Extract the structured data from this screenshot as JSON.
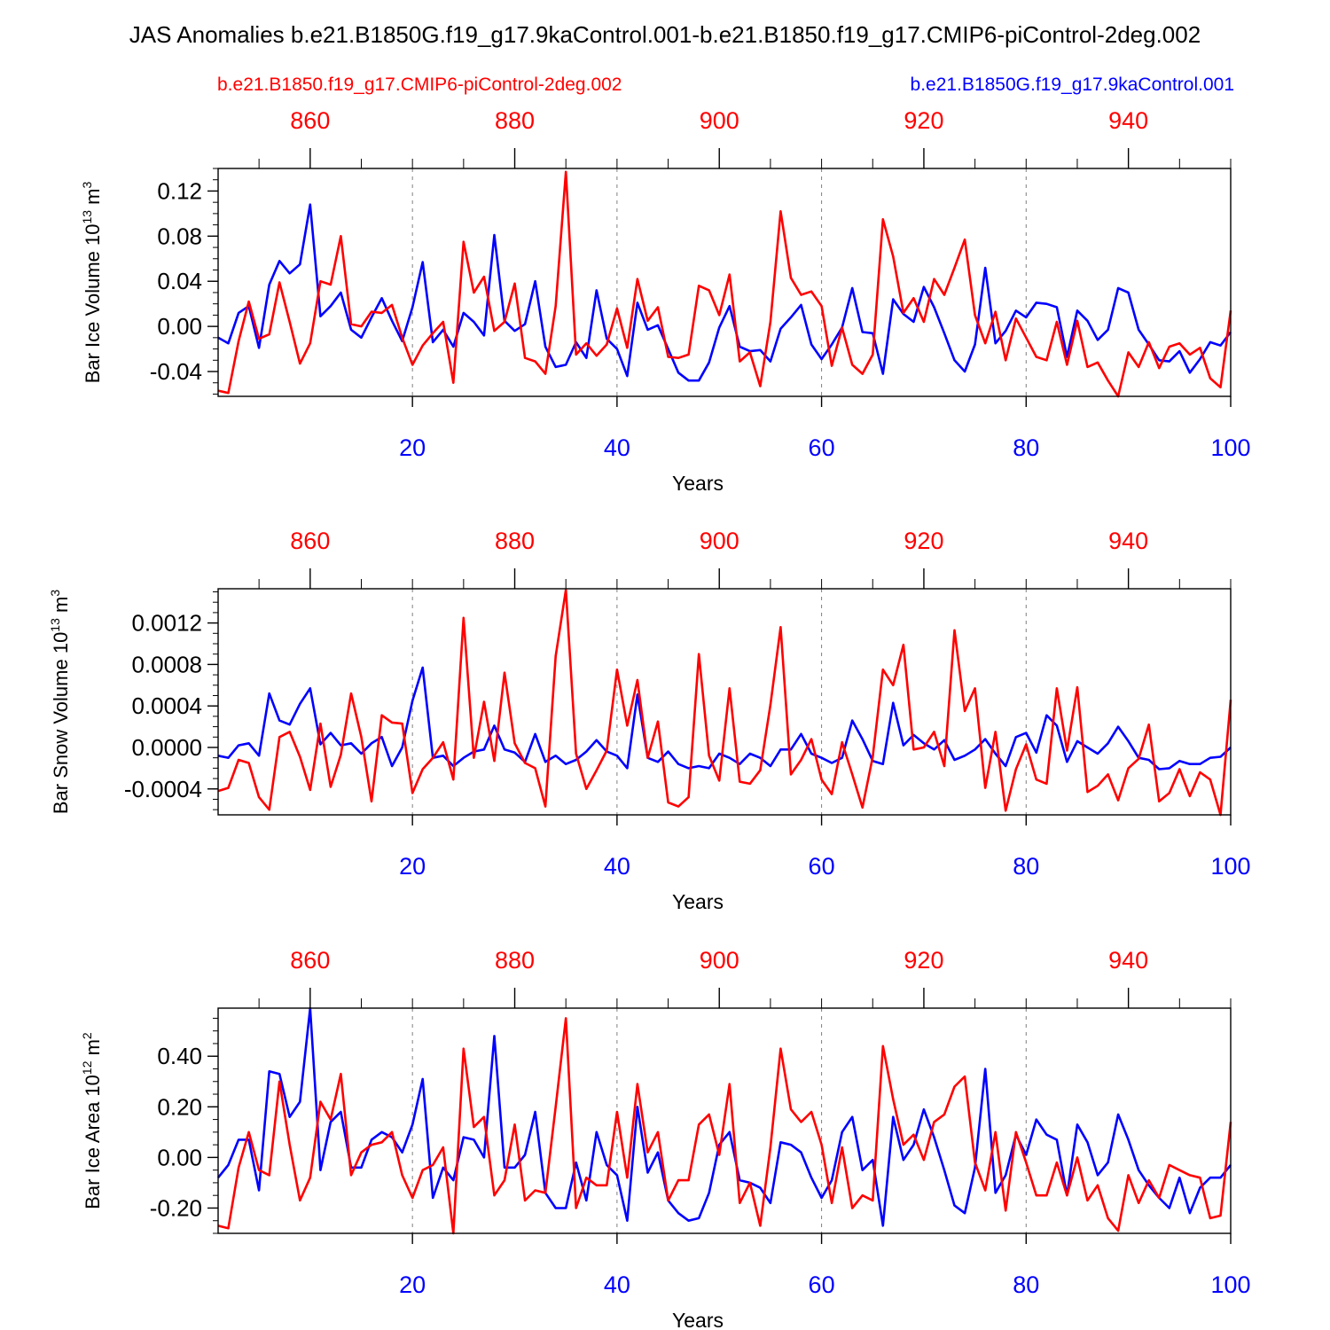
{
  "title": "JAS Anomalies b.e21.B1850G.f19_g17.9kaControl.001-b.e21.B1850.f19_g17.CMIP6-piControl-2deg.002",
  "legend": {
    "red": "b.e21.B1850.f19_g17.CMIP6-piControl-2deg.002",
    "blue": "b.e21.B1850G.f19_g17.9kaControl.001"
  },
  "colors": {
    "red": "#ff0000",
    "blue": "#0000ff",
    "axis": "#000000",
    "grid": "#808080"
  },
  "chart_data": [
    {
      "type": "line",
      "ylabel": "Bar Ice Volume",
      "yunit_base": "10",
      "yunit_exp": "13",
      "yunit_tail": "m",
      "yunit_tail_exp": "3",
      "xlabel": "Years",
      "xlim": [
        1,
        100
      ],
      "ylim": [
        -0.062,
        0.14
      ],
      "yticks": [
        -0.04,
        0.0,
        0.04,
        0.08,
        0.12
      ],
      "ytick_labels": [
        "-0.04",
        "0.00",
        "0.04",
        "0.08",
        "0.12"
      ],
      "yminor_step": 0.01,
      "xticks_bottom": [
        20,
        40,
        60,
        80,
        100
      ],
      "xtick_labels_bottom": [
        "20",
        "40",
        "60",
        "80",
        "100"
      ],
      "xticks_top": [
        860,
        880,
        900,
        920,
        940
      ],
      "xtick_labels_top": [
        "860",
        "880",
        "900",
        "920",
        "940"
      ],
      "top_offset": 850,
      "series": [
        {
          "name": "b.e21.B1850G.f19_g17.9kaControl.001",
          "color": "blue",
          "values": [
            -0.01,
            -0.015,
            0.012,
            0.018,
            -0.019,
            0.037,
            0.058,
            0.047,
            0.055,
            0.108,
            0.009,
            0.018,
            0.03,
            -0.003,
            -0.01,
            0.008,
            0.025,
            0.005,
            -0.013,
            0.017,
            0.057,
            -0.014,
            -0.003,
            -0.018,
            0.012,
            0.004,
            -0.008,
            0.081,
            0.005,
            -0.004,
            0.002,
            0.04,
            -0.018,
            -0.036,
            -0.034,
            -0.014,
            -0.028,
            0.032,
            -0.011,
            -0.02,
            -0.044,
            0.021,
            -0.003,
            0.001,
            -0.02,
            -0.041,
            -0.048,
            -0.048,
            -0.032,
            -0.001,
            0.018,
            -0.018,
            -0.022,
            -0.021,
            -0.031,
            -0.002,
            0.008,
            0.019,
            -0.016,
            -0.029,
            -0.016,
            -0.001,
            0.034,
            -0.005,
            -0.006,
            -0.042,
            0.024,
            0.011,
            0.004,
            0.035,
            0.017,
            -0.006,
            -0.03,
            -0.04,
            -0.016,
            0.052,
            -0.015,
            -0.004,
            0.014,
            0.008,
            0.021,
            0.02,
            0.017,
            -0.027,
            0.014,
            0.005,
            -0.012,
            -0.003,
            0.034,
            0.03,
            -0.003,
            -0.016,
            -0.03,
            -0.031,
            -0.022,
            -0.041,
            -0.029,
            -0.014,
            -0.017,
            -0.005
          ]
        },
        {
          "name": "b.e21.B1850.f19_g17.CMIP6-piControl-2deg.002",
          "color": "red",
          "values": [
            -0.057,
            -0.059,
            -0.013,
            0.022,
            -0.011,
            -0.007,
            0.039,
            0.004,
            -0.033,
            -0.015,
            0.04,
            0.037,
            0.08,
            0.002,
            0.0,
            0.013,
            0.012,
            0.019,
            -0.01,
            -0.034,
            -0.017,
            -0.006,
            0.004,
            -0.05,
            0.075,
            0.03,
            0.044,
            -0.004,
            0.004,
            0.038,
            -0.028,
            -0.031,
            -0.042,
            0.018,
            0.137,
            -0.025,
            -0.015,
            -0.026,
            -0.016,
            0.016,
            -0.019,
            0.042,
            0.005,
            0.017,
            -0.027,
            -0.028,
            -0.025,
            0.036,
            0.032,
            0.01,
            0.046,
            -0.031,
            -0.023,
            -0.053,
            0.004,
            0.102,
            0.043,
            0.028,
            0.031,
            0.018,
            -0.035,
            -0.001,
            -0.034,
            -0.042,
            -0.025,
            0.095,
            0.062,
            0.012,
            0.025,
            0.004,
            0.042,
            0.028,
            0.052,
            0.077,
            0.01,
            -0.015,
            0.013,
            -0.03,
            0.007,
            -0.01,
            -0.027,
            -0.03,
            0.004,
            -0.034,
            0.005,
            -0.036,
            -0.032,
            -0.048,
            -0.062,
            -0.023,
            -0.036,
            -0.014,
            -0.037,
            -0.018,
            -0.015,
            -0.025,
            -0.019,
            -0.046,
            -0.054,
            0.014
          ]
        }
      ]
    },
    {
      "type": "line",
      "ylabel": "Bar Snow Volume",
      "yunit_base": "10",
      "yunit_exp": "13",
      "yunit_tail": "m",
      "yunit_tail_exp": "3",
      "xlabel": "Years",
      "xlim": [
        1,
        100
      ],
      "ylim": [
        -0.00065,
        0.00153
      ],
      "yticks": [
        -0.0004,
        0.0,
        0.0004,
        0.0008,
        0.0012
      ],
      "ytick_labels": [
        "-0.0004",
        "0.0000",
        "0.0004",
        "0.0008",
        "0.0012"
      ],
      "yminor_step": 0.0001,
      "xticks_bottom": [
        20,
        40,
        60,
        80,
        100
      ],
      "xtick_labels_bottom": [
        "20",
        "40",
        "60",
        "80",
        "100"
      ],
      "xticks_top": [
        860,
        880,
        900,
        920,
        940
      ],
      "xtick_labels_top": [
        "860",
        "880",
        "900",
        "920",
        "940"
      ],
      "top_offset": 850,
      "series": [
        {
          "name": "b.e21.B1850G.f19_g17.9kaControl.001",
          "color": "blue",
          "values": [
            -8e-05,
            -0.0001,
            2e-05,
            4e-05,
            -8e-05,
            0.00052,
            0.00026,
            0.00022,
            0.00042,
            0.00057,
            3e-05,
            0.00014,
            2e-05,
            4e-05,
            -6e-05,
            4e-05,
            0.0001,
            -0.00018,
            0.0,
            0.00045,
            0.00077,
            -0.0001,
            -8e-05,
            -0.00018,
            -0.0001,
            -4e-05,
            -2e-05,
            0.00021,
            -2e-05,
            -5e-05,
            -0.00014,
            0.00013,
            -0.00014,
            -8e-05,
            -0.00016,
            -0.00012,
            -4e-05,
            7e-05,
            -4e-05,
            -8e-05,
            -0.0002,
            0.00051,
            -0.0001,
            -0.00014,
            -4e-05,
            -0.00016,
            -0.0002,
            -0.00018,
            -0.0002,
            -6e-05,
            -0.0001,
            -0.00016,
            -6e-05,
            -0.0001,
            -0.00018,
            -2e-05,
            -2e-05,
            0.00013,
            -6e-05,
            -0.0001,
            -0.00015,
            -0.0001,
            0.00026,
            8e-05,
            -0.00013,
            -0.00016,
            0.00043,
            2e-05,
            0.00012,
            4e-05,
            -2e-05,
            7e-05,
            -0.00012,
            -8e-05,
            -2e-05,
            8e-05,
            -6e-05,
            -0.00018,
            0.0001,
            0.00014,
            -5e-05,
            0.00031,
            0.00021,
            -0.00014,
            6e-05,
            0.0,
            -6e-05,
            4e-05,
            0.0002,
            6e-05,
            -0.0001,
            -0.00012,
            -0.00021,
            -0.0002,
            -0.00013,
            -0.00016,
            -0.00016,
            -0.0001,
            -9e-05,
            0.0
          ]
        },
        {
          "name": "b.e21.B1850.f19_g17.CMIP6-piControl-2deg.002",
          "color": "red",
          "values": [
            -0.00042,
            -0.00039,
            -0.00012,
            -0.00015,
            -0.00048,
            -0.0006,
            0.0001,
            0.00015,
            -9e-05,
            -0.00041,
            0.00023,
            -0.00038,
            -7e-05,
            0.00052,
            0.0001,
            -0.00052,
            0.00031,
            0.00024,
            0.00023,
            -0.00044,
            -0.00021,
            -0.0001,
            5e-05,
            -0.00031,
            0.00125,
            -0.0001,
            0.00044,
            -0.00013,
            0.00072,
            4e-05,
            -0.00015,
            -0.0002,
            -0.00057,
            0.00088,
            0.00152,
            -6e-05,
            -0.0004,
            -0.00022,
            -3e-05,
            0.00075,
            0.00021,
            0.00065,
            -0.0001,
            0.00025,
            -0.00053,
            -0.00057,
            -0.00048,
            0.0009,
            -8e-05,
            -0.00032,
            0.00057,
            -0.00033,
            -0.00035,
            -0.00022,
            0.00041,
            0.00116,
            -0.00026,
            -0.00012,
            8e-05,
            -0.00031,
            -0.00045,
            5e-05,
            -0.00026,
            -0.00058,
            -9e-05,
            0.00075,
            0.0006,
            0.00099,
            -2e-05,
            0.0,
            0.00015,
            -0.00018,
            0.00113,
            0.00035,
            0.00057,
            -0.00039,
            0.00015,
            -0.00061,
            -0.00021,
            3e-05,
            -0.00031,
            -0.00035,
            0.00057,
            -3e-05,
            0.00058,
            -0.00043,
            -0.00037,
            -0.00026,
            -0.00051,
            -0.0002,
            -0.00011,
            0.00022,
            -0.00052,
            -0.00044,
            -0.00021,
            -0.00047,
            -0.00024,
            -0.00031,
            -0.00065,
            0.00046
          ]
        }
      ]
    },
    {
      "type": "line",
      "ylabel": "Bar Ice Area",
      "yunit_base": "10",
      "yunit_exp": "12",
      "yunit_tail": "m",
      "yunit_tail_exp": "2",
      "xlabel": "Years",
      "xlim": [
        1,
        100
      ],
      "ylim": [
        -0.3,
        0.59
      ],
      "yticks": [
        -0.2,
        0.0,
        0.2,
        0.4
      ],
      "ytick_labels": [
        "-0.20",
        "0.00",
        "0.20",
        "0.40"
      ],
      "yminor_step": 0.05,
      "xticks_bottom": [
        20,
        40,
        60,
        80,
        100
      ],
      "xtick_labels_bottom": [
        "20",
        "40",
        "60",
        "80",
        "100"
      ],
      "xticks_top": [
        860,
        880,
        900,
        920,
        940
      ],
      "xtick_labels_top": [
        "860",
        "880",
        "900",
        "920",
        "940"
      ],
      "top_offset": 850,
      "series": [
        {
          "name": "b.e21.B1850G.f19_g17.9kaControl.001",
          "color": "blue",
          "values": [
            -0.08,
            -0.03,
            0.07,
            0.07,
            -0.13,
            0.34,
            0.33,
            0.16,
            0.22,
            0.59,
            -0.05,
            0.14,
            0.18,
            -0.04,
            -0.04,
            0.07,
            0.1,
            0.08,
            0.02,
            0.13,
            0.31,
            -0.16,
            -0.04,
            -0.09,
            0.08,
            0.07,
            0.0,
            0.48,
            -0.04,
            -0.04,
            0.01,
            0.18,
            -0.14,
            -0.2,
            -0.2,
            -0.02,
            -0.17,
            0.1,
            -0.03,
            -0.07,
            -0.25,
            0.2,
            -0.06,
            0.02,
            -0.17,
            -0.22,
            -0.25,
            -0.24,
            -0.14,
            0.05,
            0.1,
            -0.09,
            -0.1,
            -0.12,
            -0.18,
            0.06,
            0.05,
            0.02,
            -0.08,
            -0.16,
            -0.09,
            0.1,
            0.16,
            -0.05,
            -0.01,
            -0.27,
            0.16,
            -0.01,
            0.05,
            0.19,
            0.08,
            -0.05,
            -0.19,
            -0.22,
            -0.04,
            0.35,
            -0.14,
            -0.07,
            0.09,
            0.01,
            0.15,
            0.09,
            0.07,
            -0.15,
            0.13,
            0.06,
            -0.07,
            -0.02,
            0.17,
            0.07,
            -0.05,
            -0.11,
            -0.16,
            -0.2,
            -0.08,
            -0.22,
            -0.12,
            -0.08,
            -0.08,
            -0.03
          ]
        },
        {
          "name": "b.e21.B1850.f19_g17.CMIP6-piControl-2deg.002",
          "color": "red",
          "values": [
            -0.27,
            -0.28,
            -0.04,
            0.1,
            -0.05,
            -0.07,
            0.3,
            0.05,
            -0.17,
            -0.08,
            0.22,
            0.15,
            0.33,
            -0.07,
            0.02,
            0.05,
            0.06,
            0.1,
            -0.07,
            -0.16,
            -0.05,
            -0.03,
            0.04,
            -0.3,
            0.43,
            0.12,
            0.16,
            -0.15,
            -0.09,
            0.13,
            -0.17,
            -0.13,
            -0.14,
            0.2,
            0.55,
            -0.2,
            -0.08,
            -0.11,
            -0.11,
            0.18,
            -0.08,
            0.29,
            0.02,
            0.1,
            -0.17,
            -0.09,
            -0.09,
            0.13,
            0.17,
            0.01,
            0.29,
            -0.18,
            -0.1,
            -0.27,
            0.04,
            0.43,
            0.19,
            0.14,
            0.18,
            0.05,
            -0.18,
            0.04,
            -0.2,
            -0.15,
            -0.17,
            0.44,
            0.23,
            0.05,
            0.09,
            -0.01,
            0.14,
            0.17,
            0.28,
            0.32,
            -0.02,
            -0.13,
            0.1,
            -0.21,
            0.1,
            -0.02,
            -0.15,
            -0.15,
            -0.02,
            -0.15,
            0.0,
            -0.17,
            -0.11,
            -0.24,
            -0.29,
            -0.07,
            -0.18,
            -0.09,
            -0.16,
            -0.03,
            -0.05,
            -0.07,
            -0.08,
            -0.24,
            -0.23,
            0.14
          ]
        }
      ]
    }
  ]
}
